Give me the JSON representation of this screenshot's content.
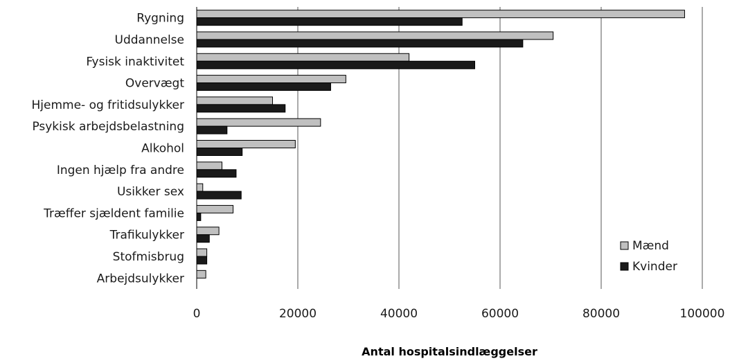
{
  "chart_data": {
    "type": "bar",
    "orientation": "horizontal",
    "categories": [
      "Rygning",
      "Uddannelse",
      "Fysisk inaktivitet",
      "Overvægt",
      "Hjemme- og fritidsulykker",
      "Psykisk arbejdsbelastning",
      "Alkohol",
      "Ingen hjælp fra andre",
      "Usikker sex",
      "Træffer sjældent familie",
      "Trafikulykker",
      "Stofmisbrug",
      "Arbejdsulykker"
    ],
    "series": [
      {
        "name": "Mænd",
        "color": "#c0c0c0",
        "values": [
          96500,
          70500,
          42000,
          29500,
          15000,
          24500,
          19500,
          5000,
          1200,
          7200,
          4400,
          2000,
          1800
        ]
      },
      {
        "name": "Kvinder",
        "color": "#1a1a1a",
        "values": [
          52500,
          64500,
          55000,
          26500,
          17500,
          6000,
          9000,
          7800,
          8800,
          800,
          2500,
          2000,
          0
        ]
      }
    ],
    "xlim": [
      0,
      100000
    ],
    "xticks": [
      "0",
      "20000",
      "40000",
      "60000",
      "80000",
      "100000"
    ],
    "xlabel": "Antal hospitalsindlæggelser",
    "ylabel": "",
    "title": "",
    "grid": "vertical",
    "legend_position": "bottom-right"
  }
}
